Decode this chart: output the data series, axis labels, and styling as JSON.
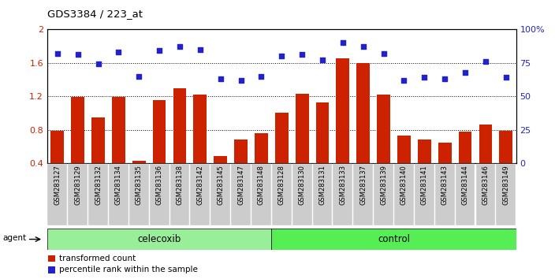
{
  "title": "GDS3384 / 223_at",
  "samples": [
    "GSM283127",
    "GSM283129",
    "GSM283132",
    "GSM283134",
    "GSM283135",
    "GSM283136",
    "GSM283138",
    "GSM283142",
    "GSM283145",
    "GSM283147",
    "GSM283148",
    "GSM283128",
    "GSM283130",
    "GSM283131",
    "GSM283133",
    "GSM283137",
    "GSM283139",
    "GSM283140",
    "GSM283141",
    "GSM283143",
    "GSM283144",
    "GSM283146",
    "GSM283149"
  ],
  "transformed_count": [
    0.79,
    1.19,
    0.95,
    1.19,
    0.43,
    1.15,
    1.3,
    1.22,
    0.49,
    0.68,
    0.76,
    1.0,
    1.23,
    1.13,
    1.65,
    1.6,
    1.22,
    0.73,
    0.68,
    0.65,
    0.78,
    0.86,
    0.79
  ],
  "percentile_rank": [
    82,
    81,
    74,
    83,
    65,
    84,
    87,
    85,
    63,
    62,
    65,
    80,
    81,
    77,
    90,
    87,
    82,
    62,
    64,
    63,
    68,
    76,
    64
  ],
  "celecoxib_count": 11,
  "ylim_left": [
    0.4,
    2.0
  ],
  "ylim_right": [
    0,
    100
  ],
  "yticks_left": [
    0.4,
    0.8,
    1.2,
    1.6,
    2.0
  ],
  "yticks_left_labels": [
    "0.4",
    "0.8",
    "1.2",
    "1.6",
    "2"
  ],
  "yticks_right": [
    0,
    25,
    50,
    75,
    100
  ],
  "yticks_right_labels": [
    "0",
    "25",
    "50",
    "75",
    "100%"
  ],
  "bar_color": "#cc2200",
  "dot_color": "#2222cc",
  "celecoxib_color": "#99ee99",
  "control_color": "#55ee55",
  "bg_color": "#cccccc",
  "legend_bar_label": "transformed count",
  "legend_dot_label": "percentile rank within the sample",
  "agent_label": "agent",
  "celecoxib_label": "celecoxib",
  "control_label": "control"
}
